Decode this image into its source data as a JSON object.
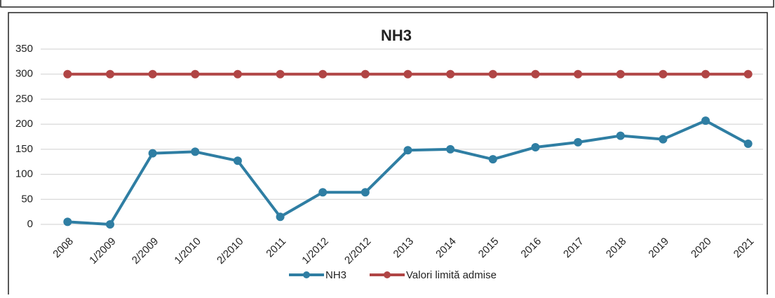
{
  "chart_data": {
    "type": "line",
    "title": "NH3",
    "categories": [
      "2008",
      "1/2009",
      "2/2009",
      "1/2010",
      "2/2010",
      "2011",
      "1/2012",
      "2/2012",
      "2013",
      "2014",
      "2015",
      "2016",
      "2017",
      "2018",
      "2019",
      "2020",
      "2021"
    ],
    "series": [
      {
        "name": "NH3",
        "color": "#2f7ea3",
        "values": [
          5,
          0,
          142,
          145,
          127,
          15,
          64,
          64,
          148,
          150,
          130,
          154,
          164,
          177,
          170,
          207,
          161
        ]
      },
      {
        "name": "Valori limită admise",
        "color": "#b04545",
        "values": [
          300,
          300,
          300,
          300,
          300,
          300,
          300,
          300,
          300,
          300,
          300,
          300,
          300,
          300,
          300,
          300,
          300
        ]
      }
    ],
    "ylim": [
      0,
      350
    ],
    "yticks": [
      0,
      50,
      100,
      150,
      200,
      250,
      300,
      350
    ],
    "grid": true,
    "legend": "bottom"
  }
}
